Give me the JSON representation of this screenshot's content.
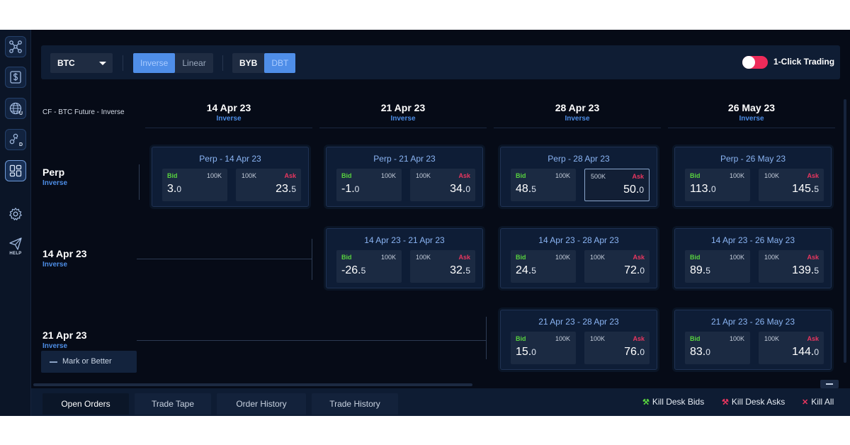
{
  "toolbar": {
    "asset": "BTC",
    "type_options": [
      "Inverse",
      "Linear"
    ],
    "type_selected": "Inverse",
    "venue_options": [
      "BYB",
      "DBT"
    ],
    "venue_selected": "DBT",
    "one_click_label": "1-Click Trading",
    "one_click_on": true
  },
  "grid": {
    "corner_label": "CF - BTC Future - Inverse",
    "columns": [
      {
        "date": "14 Apr 23",
        "type": "Inverse"
      },
      {
        "date": "21 Apr 23",
        "type": "Inverse"
      },
      {
        "date": "28 Apr 23",
        "type": "Inverse"
      },
      {
        "date": "26 May 23",
        "type": "Inverse"
      }
    ],
    "rows": [
      {
        "label": "Perp",
        "type": "Inverse"
      },
      {
        "label": "14 Apr 23",
        "type": "Inverse"
      },
      {
        "label": "21 Apr 23",
        "type": "Inverse"
      }
    ],
    "cards": {
      "r0c0": {
        "title": "Perp - 14 Apr 23",
        "bid_label": "Bid",
        "ask_label": "Ask",
        "bid_size": "100K",
        "ask_size": "100K",
        "bid_main": "3.",
        "bid_dec": "0",
        "ask_main": "23.",
        "ask_dec": "5"
      },
      "r0c1": {
        "title": "Perp - 21 Apr 23",
        "bid_label": "Bid",
        "ask_label": "Ask",
        "bid_size": "100K",
        "ask_size": "100K",
        "bid_main": "-1.",
        "bid_dec": "0",
        "ask_main": "34.",
        "ask_dec": "0"
      },
      "r0c2": {
        "title": "Perp - 28 Apr 23",
        "bid_label": "Bid",
        "ask_label": "Ask",
        "bid_size": "100K",
        "ask_size": "500K",
        "bid_main": "48.",
        "bid_dec": "5",
        "ask_main": "50.",
        "ask_dec": "0"
      },
      "r0c3": {
        "title": "Perp - 26 May 23",
        "bid_label": "Bid",
        "ask_label": "Ask",
        "bid_size": "100K",
        "ask_size": "100K",
        "bid_main": "113.",
        "bid_dec": "0",
        "ask_main": "145.",
        "ask_dec": "5"
      },
      "r1c1": {
        "title": "14 Apr 23 - 21 Apr 23",
        "bid_label": "Bid",
        "ask_label": "Ask",
        "bid_size": "100K",
        "ask_size": "100K",
        "bid_main": "-26.",
        "bid_dec": "5",
        "ask_main": "32.",
        "ask_dec": "5"
      },
      "r1c2": {
        "title": "14 Apr 23 - 28 Apr 23",
        "bid_label": "Bid",
        "ask_label": "Ask",
        "bid_size": "100K",
        "ask_size": "100K",
        "bid_main": "24.",
        "bid_dec": "5",
        "ask_main": "72.",
        "ask_dec": "0"
      },
      "r1c3": {
        "title": "14 Apr 23 - 26 May 23",
        "bid_label": "Bid",
        "ask_label": "Ask",
        "bid_size": "100K",
        "ask_size": "100K",
        "bid_main": "89.",
        "bid_dec": "5",
        "ask_main": "139.",
        "ask_dec": "5"
      },
      "r2c2": {
        "title": "21 Apr 23 - 28 Apr 23",
        "bid_label": "Bid",
        "ask_label": "Ask",
        "bid_size": "100K",
        "ask_size": "100K",
        "bid_main": "15.",
        "bid_dec": "0",
        "ask_main": "76.",
        "ask_dec": "0"
      },
      "r2c3": {
        "title": "21 Apr 23 - 26 May 23",
        "bid_label": "Bid",
        "ask_label": "Ask",
        "bid_size": "100K",
        "ask_size": "100K",
        "bid_main": "83.",
        "bid_dec": "0",
        "ask_main": "144.",
        "ask_dec": "0"
      }
    }
  },
  "mark_button": "Mark or Better",
  "sidebar": {
    "help_label": "HELP",
    "icons": [
      "network-icon",
      "dollar-box-icon",
      "globe-icon",
      "shapes-icon",
      "layout-icon",
      "gear-icon",
      "paper-plane-icon"
    ]
  },
  "bottom": {
    "tabs": [
      "Open Orders",
      "Trade Tape",
      "Order History",
      "Trade History"
    ],
    "active_tab": "Open Orders",
    "kill_bids": "Kill Desk Bids",
    "kill_asks": "Kill Desk Asks",
    "kill_all": "Kill All"
  },
  "colors": {
    "background": "#060b17",
    "accent": "#4f8ee8",
    "bid": "#58d33f",
    "ask": "#e8365f",
    "toggle": "#ef2b5a"
  }
}
